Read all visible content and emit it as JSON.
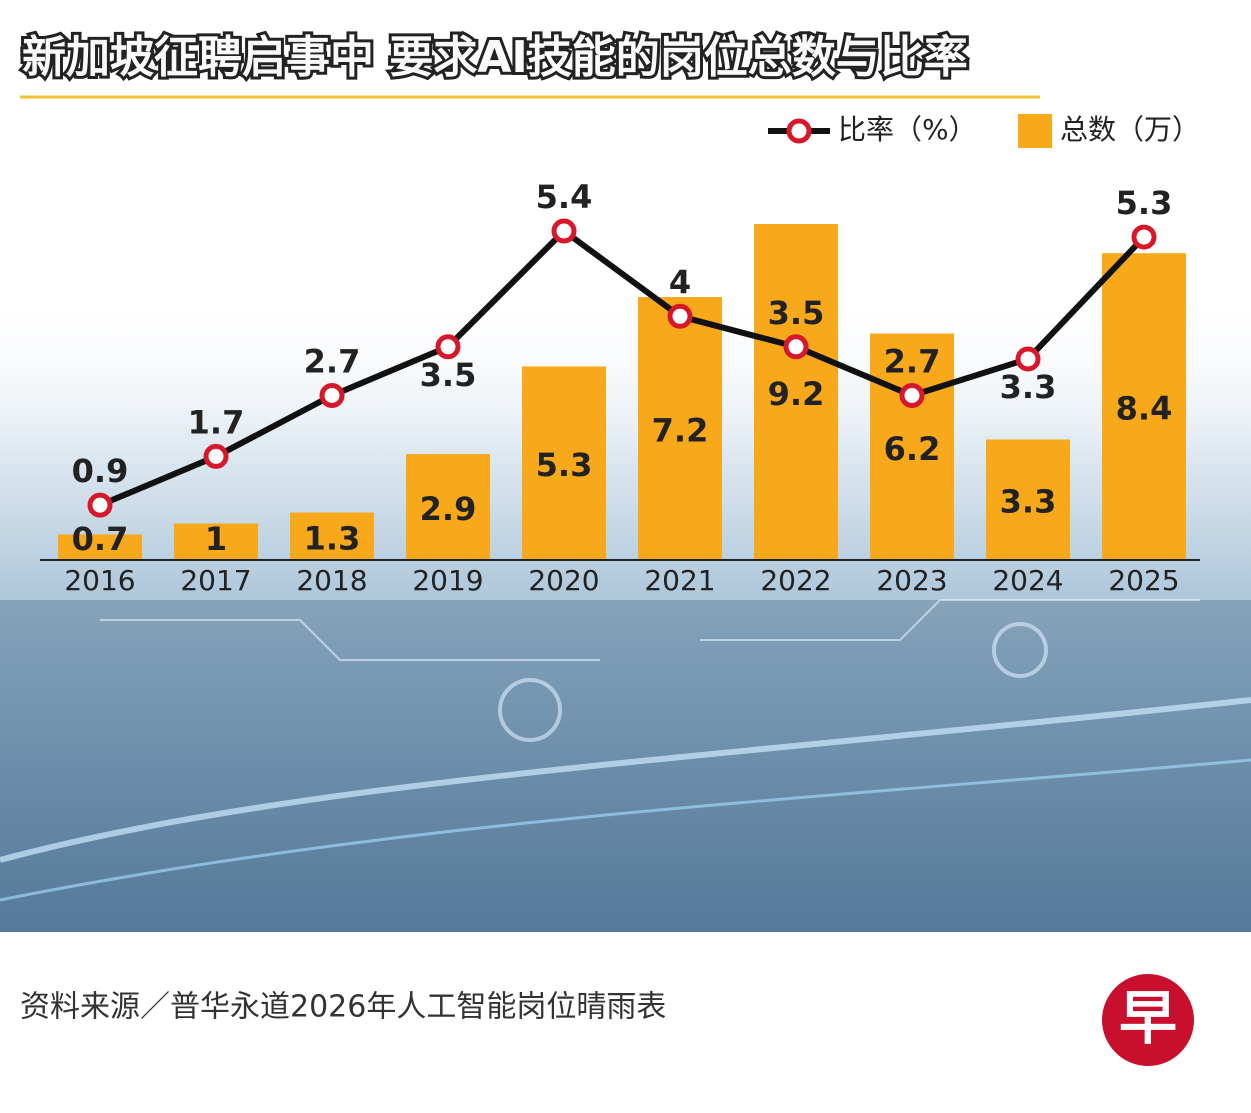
{
  "chart_data": {
    "type": "bar",
    "title": "新加坡征聘启事中 要求AI技能的岗位总数与比率",
    "categories": [
      "2016",
      "2017",
      "2018",
      "2019",
      "2020",
      "2021",
      "2022",
      "2023",
      "2024",
      "2025"
    ],
    "series": [
      {
        "name": "比率（%）",
        "type": "line",
        "color": "#d7182a",
        "values": [
          0.9,
          1.7,
          2.7,
          3.5,
          5.4,
          4,
          3.5,
          2.7,
          3.3,
          5.3
        ]
      },
      {
        "name": "总数（万）",
        "type": "bar",
        "color": "#f7a81b",
        "values": [
          0.7,
          1,
          1.3,
          2.9,
          5.3,
          7.2,
          9.2,
          6.2,
          3.3,
          8.4
        ]
      }
    ],
    "source": "资料来源／普华永道2026年人工智能岗位晴雨表",
    "logo": "早"
  }
}
